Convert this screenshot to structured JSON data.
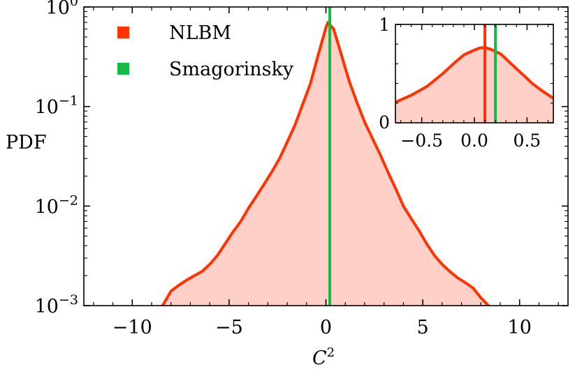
{
  "chart_data": [
    {
      "name": "main",
      "type": "area",
      "xlabel": "C",
      "xlabel_sup": "2",
      "ylabel": "PDF",
      "xlim": [
        -12.5,
        12.5
      ],
      "ylim": [
        0.001,
        1
      ],
      "yscale": "log",
      "xticks": [
        -10,
        -5,
        0,
        5,
        10
      ],
      "xtick_labels": [
        "−10",
        "−5",
        "0",
        "5",
        "10"
      ],
      "yticks": [
        {
          "value": 1,
          "base": "10",
          "exp": "0"
        },
        {
          "value": 0.1,
          "base": "10",
          "exp": "−1"
        },
        {
          "value": 0.01,
          "base": "10",
          "exp": "−2"
        },
        {
          "value": 0.001,
          "base": "10",
          "exp": "−3"
        }
      ],
      "legend": {
        "placement": "top-left",
        "entries": [
          {
            "label": "NLBM",
            "color": "#ff3300"
          },
          {
            "label": "Smagorinsky",
            "color": "#11bb44"
          }
        ]
      },
      "series": [
        {
          "name": "NLBM",
          "color": "#ff3300",
          "fill": "#ffd0c8",
          "x": [
            -8.5,
            -8.0,
            -7.6,
            -7.2,
            -6.8,
            -6.4,
            -6.0,
            -5.6,
            -5.2,
            -4.8,
            -4.4,
            -4.0,
            -3.6,
            -3.2,
            -2.8,
            -2.4,
            -2.0,
            -1.6,
            -1.2,
            -0.8,
            -0.4,
            0.0,
            0.1,
            0.4,
            0.8,
            1.2,
            1.6,
            2.0,
            2.4,
            2.8,
            3.2,
            3.6,
            4.0,
            4.4,
            4.8,
            5.2,
            5.6,
            6.0,
            6.4,
            6.8,
            7.2,
            7.6,
            8.0,
            8.5
          ],
          "y": [
            0.00095,
            0.0014,
            0.0016,
            0.0018,
            0.002,
            0.0022,
            0.0026,
            0.0032,
            0.0042,
            0.0055,
            0.007,
            0.0095,
            0.0125,
            0.0165,
            0.022,
            0.03,
            0.044,
            0.065,
            0.105,
            0.17,
            0.33,
            0.62,
            0.7,
            0.6,
            0.33,
            0.18,
            0.11,
            0.07,
            0.048,
            0.033,
            0.022,
            0.015,
            0.01,
            0.0075,
            0.0057,
            0.0042,
            0.0032,
            0.0026,
            0.0022,
            0.0019,
            0.0017,
            0.0015,
            0.0012,
            0.00095
          ]
        },
        {
          "name": "Smagorinsky",
          "color": "#11bb44",
          "type": "vline",
          "x": 0.2
        }
      ]
    },
    {
      "name": "inset",
      "type": "area",
      "xlim": [
        -0.75,
        0.75
      ],
      "ylim": [
        0,
        1
      ],
      "xticks": [
        -0.5,
        0.0,
        0.5
      ],
      "xtick_labels": [
        "−0.5",
        "0.0",
        "0.5"
      ],
      "yticks": [
        0,
        1
      ],
      "ytick_labels": [
        "0",
        "1"
      ],
      "series": [
        {
          "name": "NLBM",
          "color": "#ff3300",
          "fill": "#ffd0c8",
          "x": [
            -0.75,
            -0.6,
            -0.45,
            -0.3,
            -0.2,
            -0.1,
            0.0,
            0.05,
            0.1,
            0.15,
            0.25,
            0.35,
            0.45,
            0.55,
            0.65,
            0.75
          ],
          "y": [
            0.21,
            0.28,
            0.37,
            0.5,
            0.6,
            0.69,
            0.74,
            0.76,
            0.765,
            0.75,
            0.7,
            0.6,
            0.5,
            0.4,
            0.32,
            0.25
          ]
        },
        {
          "name": "NLBM-mean",
          "color": "#ff3300",
          "type": "vline",
          "x": 0.1
        },
        {
          "name": "Smagorinsky",
          "color": "#11bb44",
          "type": "vline",
          "x": 0.2
        }
      ]
    }
  ]
}
